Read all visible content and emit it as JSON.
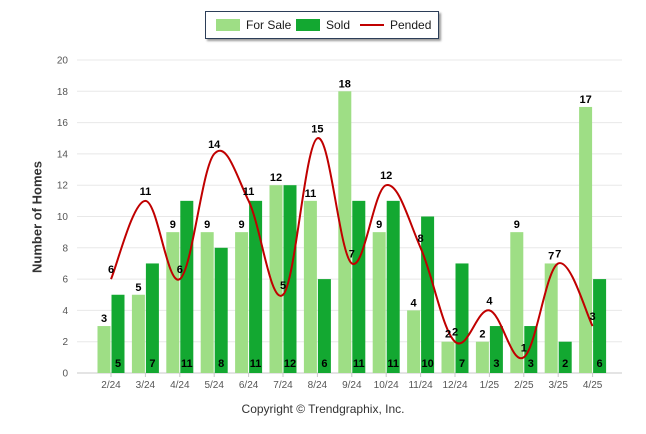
{
  "legend": {
    "for_sale": "For Sale",
    "sold": "Sold",
    "pended": "Pended"
  },
  "copyright": "Copyright © Trendgraphix, Inc.",
  "colors": {
    "for_sale": "#9ede85",
    "sold": "#13a831",
    "pended": "#c00000",
    "grid": "#e8e8e8",
    "axis_text": "#555555"
  },
  "chart_data": {
    "type": "bar",
    "title": "",
    "xlabel": "",
    "ylabel": "Number of Homes",
    "ylim": [
      0,
      20
    ],
    "yticks": [
      0,
      2,
      4,
      6,
      8,
      10,
      12,
      14,
      16,
      18,
      20
    ],
    "grid": true,
    "legend_position": "top-center",
    "categories": [
      "2/24",
      "3/24",
      "4/24",
      "5/24",
      "6/24",
      "7/24",
      "8/24",
      "9/24",
      "10/24",
      "11/24",
      "12/24",
      "1/25",
      "2/25",
      "3/25",
      "4/25"
    ],
    "series": [
      {
        "name": "For Sale",
        "type": "bar",
        "values": [
          3,
          5,
          9,
          9,
          9,
          12,
          11,
          18,
          9,
          4,
          2,
          2,
          9,
          7,
          17
        ]
      },
      {
        "name": "Sold",
        "type": "bar",
        "values": [
          5,
          7,
          11,
          8,
          11,
          12,
          6,
          11,
          11,
          10,
          7,
          3,
          3,
          2,
          6
        ]
      },
      {
        "name": "Pended",
        "type": "line",
        "values": [
          6,
          11,
          6,
          14,
          11,
          5,
          15,
          7,
          12,
          8,
          2,
          4,
          1,
          7,
          3
        ]
      }
    ]
  }
}
